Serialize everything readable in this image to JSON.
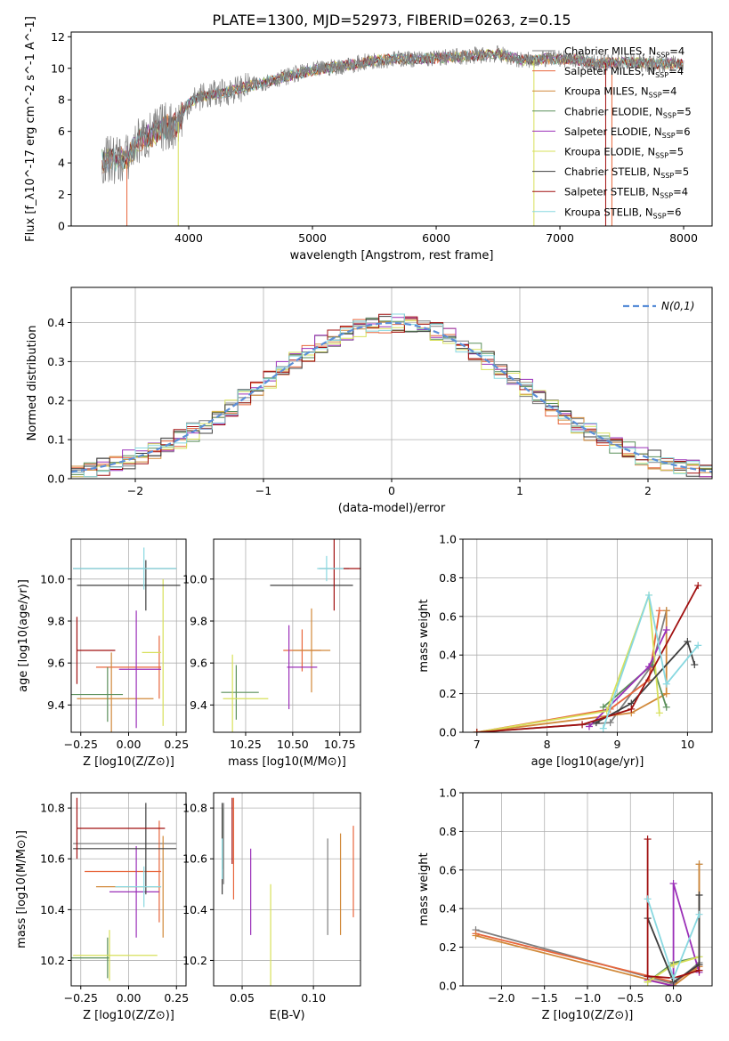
{
  "figure": {
    "title": "PLATE=1300, MJD=52973, FIBERID=0263, z=0.15"
  },
  "models": [
    {
      "name": "Chabrier MILES",
      "nssp": 4,
      "color": "#7f7f7f"
    },
    {
      "name": "Salpeter MILES",
      "nssp": 4,
      "color": "#e8663c"
    },
    {
      "name": "Kroupa MILES",
      "nssp": 4,
      "color": "#d1893a"
    },
    {
      "name": "Chabrier ELODIE",
      "nssp": 5,
      "color": "#5a8f5a"
    },
    {
      "name": "Salpeter ELODIE",
      "nssp": 6,
      "color": "#9b30b8"
    },
    {
      "name": "Kroupa ELODIE",
      "nssp": 5,
      "color": "#d7e05a"
    },
    {
      "name": "Chabrier STELIB",
      "nssp": 5,
      "color": "#3f3f3f"
    },
    {
      "name": "Salpeter STELIB",
      "nssp": 4,
      "color": "#a01010"
    },
    {
      "name": "Kroupa STELIB",
      "nssp": 6,
      "color": "#88d8e0"
    }
  ],
  "chart_data": [
    {
      "id": "spectrum",
      "type": "line",
      "xlabel": "wavelength [Angstrom, rest frame]",
      "ylabel": "Flux [f_λ10^-17 erg cm^-2 s^-1 A^-1]",
      "xlim": [
        3050,
        8230
      ],
      "ylim": [
        0,
        12.3
      ],
      "xticks": [
        4000,
        5000,
        6000,
        7000,
        8000
      ],
      "yticks": [
        0,
        2,
        4,
        6,
        8,
        10,
        12
      ],
      "legend_position": "upper-right",
      "observed_envelope": {
        "x": [
          3300,
          3500,
          3600,
          3700,
          3800,
          3900,
          4000,
          4100,
          4300,
          4500,
          4700,
          4900,
          5100,
          5300,
          5500,
          5700,
          5900,
          6100,
          6300,
          6500,
          6700,
          6900,
          7100,
          7300,
          7500,
          7700,
          7900,
          8000
        ],
        "y": [
          4.1,
          4.3,
          5.4,
          5.8,
          6.3,
          6.4,
          7.8,
          8.2,
          8.5,
          8.9,
          9.3,
          9.7,
          10.0,
          10.2,
          10.5,
          10.6,
          10.6,
          10.7,
          10.8,
          10.9,
          10.5,
          10.6,
          10.6,
          10.3,
          10.4,
          10.3,
          10.3,
          10.3
        ]
      }
    },
    {
      "id": "residuals",
      "type": "histogram",
      "xlabel": "(data-model)/error",
      "ylabel": "Normed distribution",
      "xlim": [
        -2.5,
        2.5
      ],
      "ylim": [
        0,
        0.49
      ],
      "xticks": [
        -2,
        -1,
        0,
        1,
        2
      ],
      "yticks": [
        0.0,
        0.1,
        0.2,
        0.3,
        0.4
      ],
      "legend_position": "upper-right",
      "reference_curve": {
        "label": "N(0,1)",
        "mean": 0,
        "sigma": 1,
        "color": "#5b8fd8"
      },
      "bin_width": 0.1
    },
    {
      "id": "age-vs-z",
      "type": "errorbar",
      "xlabel": "Z [log10(Z/Z⊙)]",
      "ylabel": "age [log10(age/yr)]",
      "xlim": [
        -0.3,
        0.3
      ],
      "ylim": [
        9.27,
        10.19
      ],
      "xticks": [
        -0.25,
        0.0,
        0.25
      ],
      "yticks": [
        9.4,
        9.6,
        9.8,
        10.0
      ],
      "points": [
        {
          "x": 0.05,
          "y": 10.05,
          "xerr": 0.0,
          "yerr": 0.0
        },
        {
          "x": 0.16,
          "y": 9.58,
          "xerr": 0.0,
          "yerr": 0.0
        },
        {
          "x": -0.09,
          "y": 9.43,
          "xerr": 0.0,
          "yerr": 0.0
        },
        {
          "x": -0.11,
          "y": 9.45,
          "xerr": 0.0,
          "yerr": 0.0
        },
        {
          "x": 0.04,
          "y": 9.57,
          "xerr": 0.0,
          "yerr": 0.0
        },
        {
          "x": -0.1,
          "y": 9.65,
          "xerr": 0.0,
          "yerr": 0.0
        },
        {
          "x": 0.09,
          "y": 9.97,
          "xerr": 0.0,
          "yerr": 0.0
        },
        {
          "x": -0.27,
          "y": 10.05,
          "xerr": 0.0,
          "yerr": 0.0
        },
        {
          "x": 0.08,
          "y": 10.05,
          "xerr": 0.0,
          "yerr": 0.0
        }
      ]
    },
    {
      "id": "age-vs-mass",
      "type": "errorbar",
      "xlabel": "mass [log10(M/M⊙)]",
      "ylabel": "",
      "xlim": [
        10.08,
        10.86
      ],
      "ylim": [
        9.27,
        10.19
      ],
      "xticks": [
        10.25,
        10.5,
        10.75
      ],
      "yticks": [
        9.4,
        9.6,
        9.8,
        10.0
      ],
      "points": []
    },
    {
      "id": "mass-weight-vs-age",
      "type": "line",
      "xlabel": "age [log10(age/yr)]",
      "ylabel": "mass weight",
      "xlim": [
        6.8,
        10.35
      ],
      "ylim": [
        0,
        1
      ],
      "xticks": [
        7,
        8,
        9,
        10
      ],
      "yticks": [
        0.0,
        0.2,
        0.4,
        0.6,
        0.8,
        1.0
      ],
      "series": [
        {
          "x": [
            7.0,
            8.9,
            9.5,
            9.7
          ],
          "y": [
            0.0,
            0.05,
            0.35,
            0.63
          ]
        },
        {
          "x": [
            7.0,
            8.9,
            9.45,
            9.6
          ],
          "y": [
            0.0,
            0.12,
            0.27,
            0.63
          ]
        },
        {
          "x": [
            7.0,
            9.2,
            9.7,
            9.7
          ],
          "y": [
            0.0,
            0.1,
            0.2,
            0.63
          ]
        },
        {
          "x": [
            8.8,
            9.5,
            9.7
          ],
          "y": [
            0.13,
            0.35,
            0.13
          ]
        },
        {
          "x": [
            8.6,
            9.45,
            9.7
          ],
          "y": [
            0.03,
            0.34,
            0.53
          ]
        },
        {
          "x": [
            7.0,
            8.85,
            9.45,
            9.6
          ],
          "y": [
            0.0,
            0.11,
            0.71,
            0.1
          ]
        },
        {
          "x": [
            8.7,
            9.2,
            10.0,
            10.1
          ],
          "y": [
            0.05,
            0.15,
            0.47,
            0.35
          ]
        },
        {
          "x": [
            7.0,
            8.5,
            9.2,
            10.15
          ],
          "y": [
            0.0,
            0.04,
            0.12,
            0.76
          ]
        },
        {
          "x": [
            8.8,
            9.45,
            9.7,
            10.15
          ],
          "y": [
            0.02,
            0.71,
            0.25,
            0.45
          ]
        }
      ]
    },
    {
      "id": "mass-vs-z",
      "type": "errorbar",
      "xlabel": "Z [log10(Z/Z⊙)]",
      "ylabel": "mass [log10(M/M⊙)]",
      "xlim": [
        -0.3,
        0.3
      ],
      "ylim": [
        10.1,
        10.86
      ],
      "xticks": [
        -0.25,
        0.0,
        0.25
      ],
      "yticks": [
        10.2,
        10.4,
        10.6,
        10.8
      ],
      "points": []
    },
    {
      "id": "mass-vs-ebv",
      "type": "errorbar",
      "xlabel": "E(B-V)",
      "ylabel": "",
      "xlim": [
        0.03,
        0.133
      ],
      "ylim": [
        10.1,
        10.86
      ],
      "xticks": [
        0.05,
        0.1
      ],
      "yticks": [
        10.2,
        10.4,
        10.6,
        10.8
      ],
      "points": []
    },
    {
      "id": "mass-weight-vs-z",
      "type": "line",
      "xlabel": "Z [log10(Z/Z⊙)]",
      "ylabel": "mass weight",
      "xlim": [
        -2.45,
        0.45
      ],
      "ylim": [
        0,
        1
      ],
      "xticks": [
        -2.0,
        -1.5,
        -1.0,
        -0.5,
        0.0
      ],
      "yticks": [
        0.0,
        0.2,
        0.4,
        0.6,
        0.8,
        1.0
      ],
      "series": []
    }
  ]
}
